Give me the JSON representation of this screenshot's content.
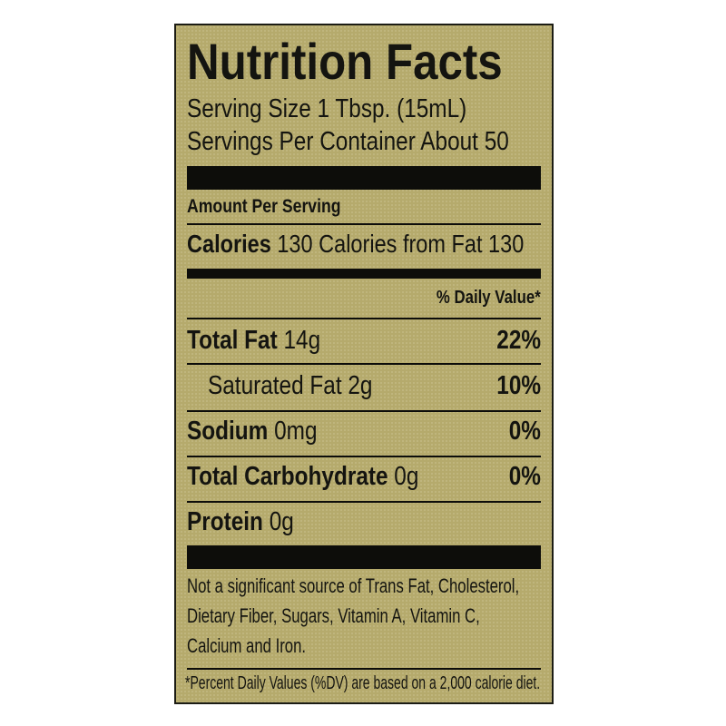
{
  "title": "Nutrition Facts",
  "serving_size": "Serving Size 1 Tbsp. (15mL)",
  "servings_per_container": "Servings Per Container About 50",
  "amount_per_serving": "Amount Per Serving",
  "calories": {
    "label": "Calories",
    "value": "130",
    "from_fat": "Calories from Fat 130"
  },
  "daily_value_header": "% Daily Value*",
  "nutrients": [
    {
      "name": "Total Fat",
      "amount": "14g",
      "dv": "22%"
    },
    {
      "name": "Saturated Fat",
      "amount": "2g",
      "dv": "10%"
    },
    {
      "name": "Sodium",
      "amount": "0mg",
      "dv": "0%"
    },
    {
      "name": "Total Carbohydrate",
      "amount": "0g",
      "dv": "0%"
    },
    {
      "name": "Protein",
      "amount": "0g",
      "dv": ""
    }
  ],
  "footnote_lines": [
    "Not a significant source of Trans Fat, Cholesterol,",
    "Dietary Fiber, Sugars, Vitamin A, Vitamin C,",
    "Calcium and Iron."
  ],
  "dv_note": "*Percent Daily Values (%DV) are based on a 2,000 calorie diet.",
  "colors": {
    "background": "#b5aa6c",
    "ink": "#141410"
  }
}
